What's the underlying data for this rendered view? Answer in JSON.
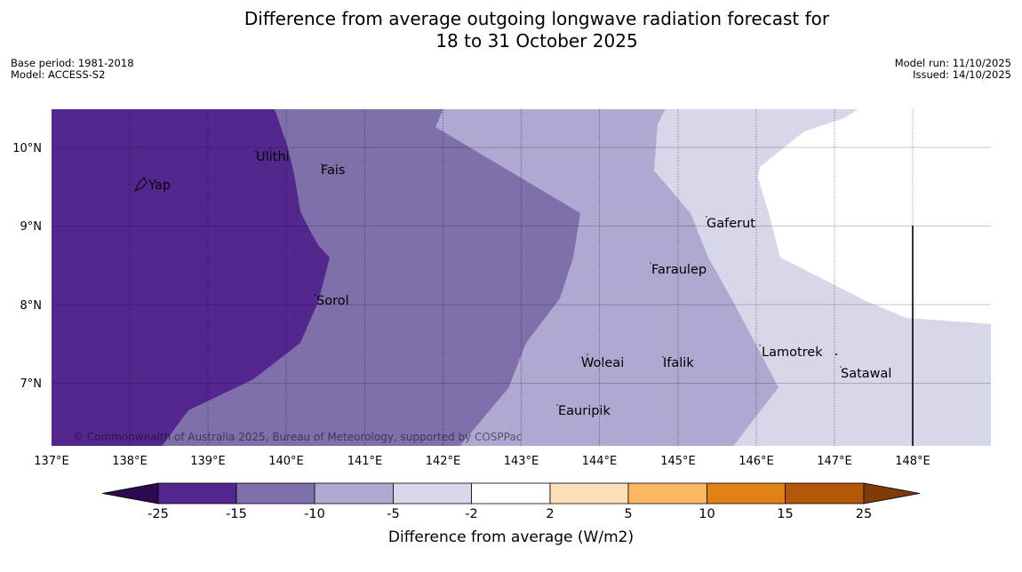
{
  "header": {
    "title_line1": "Difference from average outgoing longwave radiation forecast for",
    "title_line2": "18 to 31 October 2025",
    "base_period": "Base period: 1981-2018",
    "model": "Model: ACCESS-S2",
    "model_run": "Model run: 11/10/2025",
    "issued": "Issued: 14/10/2025"
  },
  "map": {
    "lon_labels": [
      "137°E",
      "138°E",
      "139°E",
      "140°E",
      "141°E",
      "142°E",
      "143°E",
      "144°E",
      "145°E",
      "146°E",
      "147°E",
      "148°E"
    ],
    "lat_labels": [
      "10°N",
      "9°N",
      "8°N",
      "7°N"
    ],
    "places": [
      "Yap",
      "Ulithi",
      "Fais",
      "Gaferut",
      "Faraulep",
      "Sorol",
      "Woleai",
      "Ifalik",
      "Lamotrek",
      "Satawal",
      "Eauripik"
    ],
    "copyright": "© Commonwealth of Australia 2025, Bureau of Meteorology, supported by COSPPac"
  },
  "colorbar": {
    "tick_labels": [
      "-25",
      "-15",
      "-10",
      "-5",
      "-2",
      "2",
      "5",
      "10",
      "15",
      "25"
    ],
    "label": "Difference from average (W/m2)",
    "colors": [
      "#2d0a4e",
      "#54278f",
      "#7f6fab",
      "#afa8d0",
      "#d7d7ea",
      "#ffffff",
      "#fee0b6",
      "#fdb763",
      "#e08214",
      "#b35806",
      "#7f3b08"
    ]
  }
}
